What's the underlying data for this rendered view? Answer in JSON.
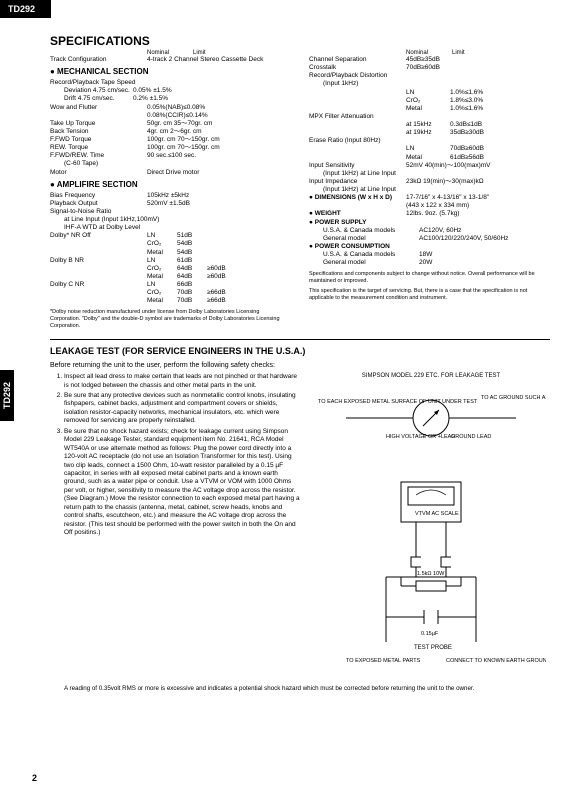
{
  "model": "TD292",
  "title": "SPECIFICATIONS",
  "hdr_nominal": "Nominal",
  "hdr_limit": "Limit",
  "trackcfg": {
    "lbl": "Track Configuration",
    "val": "4-track 2 Channel Stereo Cassette Deck"
  },
  "mech": {
    "title": "● MECHANICAL SECTION",
    "rpts": "Record/Playback Tape Speed",
    "dev": {
      "lbl": "Deviation 4.75 cm/sec.",
      "val": "0.05% ±1.5%"
    },
    "drift": {
      "lbl": "Drift 4.75 cm/sec.",
      "val": "0.2% ±1.5%"
    },
    "wow": {
      "lbl": "Wow and Flutter",
      "v1": "0.05%(NAB)≤0.08%",
      "v2": "0.08%(CCIR)≤0.14%"
    },
    "takeup": {
      "lbl": "Take Up Torque",
      "val": "50gr. cm  35～70gr. cm"
    },
    "back": {
      "lbl": "Back Tension",
      "val": "4gr. cm  2～6gr. cm"
    },
    "ffwd": {
      "lbl": "F.FWD Torque",
      "val": "100gr. cm  70～150gr. cm"
    },
    "rew": {
      "lbl": "REW. Torque",
      "val": "100gr. cm  70～150gr. cm"
    },
    "ffr": {
      "lbl": "F.FWD/REW. Time",
      "sub": "(C-60 Tape)",
      "val": "90 sec.≤100 sec."
    },
    "motor": {
      "lbl": "Motor",
      "val": "Direct Drive motor"
    }
  },
  "amp": {
    "title": "● AMPLIFIRE SECTION",
    "bias": {
      "lbl": "Bias Frequency",
      "val": "105kHz ±5kHz"
    },
    "pb": {
      "lbl": "Playback Output",
      "val": "520mV ±1.5dB"
    },
    "snr": {
      "lbl": "Signal-to-Noise Ratio",
      "s1": "at Line Input (Input 1kHz,100mV)",
      "s2": "IHF-A WTD at Dolby Level"
    },
    "d_off": {
      "lbl": "Dolby* NR Off",
      "r": [
        [
          "LN",
          "51dB",
          ""
        ],
        [
          "CrO₂",
          "54dB",
          ""
        ],
        [
          "Metal",
          "54dB",
          ""
        ]
      ]
    },
    "d_b": {
      "lbl": "Dolby B NR",
      "r": [
        [
          "LN",
          "61dB",
          ""
        ],
        [
          "CrO₂",
          "64dB",
          "≥60dB"
        ],
        [
          "Metal",
          "64dB",
          "≥60dB"
        ]
      ]
    },
    "d_c": {
      "lbl": "Dolby C NR",
      "r": [
        [
          "LN",
          "66dB",
          ""
        ],
        [
          "CrO₂",
          "70dB",
          "≥66dB"
        ],
        [
          "Metal",
          "70dB",
          "≥66dB"
        ]
      ]
    }
  },
  "fn1": "*Dolby noise reduction manufactured under license from Dolby Laboratories Licensing Corporation. \"Dolby\" and the double-D symbol are trademarks of Dolby Laboratories Licensing Corporation.",
  "r": {
    "cs": {
      "lbl": "Channel Separation",
      "val": "45dB≥35dB"
    },
    "ct": {
      "lbl": "Crosstalk",
      "val": "70dB≥60dB"
    },
    "rpd": {
      "lbl": "Record/Playback Distortion",
      "sub": "(Input 1kHz)"
    },
    "rpd_r": [
      [
        "LN",
        "1.0%≤1.6%"
      ],
      [
        "CrO₂",
        "1.8%≤3.0%"
      ],
      [
        "Metal",
        "1.0%≤1.6%"
      ]
    ],
    "mpx": {
      "lbl": "MPX Filter Attenuation",
      "r": [
        [
          "at 15kHz",
          "0.3dB≤1dB"
        ],
        [
          "at 19kHz",
          "35dB≥30dB"
        ]
      ]
    },
    "era": {
      "lbl": "Erase Ratio (Input 80Hz)",
      "r": [
        [
          "LN",
          "70dB≥60dB"
        ],
        [
          "Metal",
          "61dB≥56dB"
        ]
      ]
    },
    "is": {
      "lbl": "Input Sensitivity",
      "sub": "(Input 1kHz) at Line Input",
      "val": "52mV  40(min)～100(max)mV"
    },
    "ii": {
      "lbl": "Input Impedance",
      "sub": "(Input 1kHz) at Line Input",
      "val": "23kΩ  19(min)～30(max)kΩ"
    },
    "dim": {
      "lbl": "● DIMENSIONS (W x H x D)",
      "val": "17-7/16\" x 4-13/16\" x 13-1/8\"",
      "v2": "(443 x 122 x 334 mm)"
    },
    "wt": {
      "lbl": "● WEIGHT",
      "val": "12lbs. 9oz. (5.7kg)"
    },
    "ps": {
      "lbl": "● POWER SUPPLY",
      "r": [
        [
          "U.S.A. & Canada models",
          "AC120V, 60Hz"
        ],
        [
          "General model",
          "AC100/120/220/240V, 50/60Hz"
        ]
      ]
    },
    "pc": {
      "lbl": "● POWER CONSUMPTION",
      "r": [
        [
          "U.S.A. & Canada models",
          "18W"
        ],
        [
          "General model",
          "20W"
        ]
      ]
    }
  },
  "fn2": "Specifications and components subject to change without notice. Overall performance will be maintained or improved.",
  "fn3": "This specification is the target of servicing. But, there is a case that the specification is not applicable to the measurement condition and instrument.",
  "leak": {
    "title": "LEAKAGE TEST (FOR SERVICE ENGINEERS IN THE U.S.A.)",
    "intro": "Before returning the unit to the user, perform the following safety checks:",
    "s1": "Inspect all lead dress to make certain that leads are not pinched or that hardware is not lodged between the chassis and other metal parts in the unit.",
    "s2": "Be sure that any protective devices such as nonmetallic control knobs, insulating fishpapers, cabinet backs, adjustment and compartment covers or shields, isolation resistor-capacity networks, mechanical insulators, etc. which were removed for servicing are properly reinstalled.",
    "s3": "Be sure that no shock hazard exists; check for leakage current using Simpson Model 229 Leakage Tester, standard equipment item No. 21641, RCA Model WT540A or use alternate method as follows: Plug the power cord directly into a 120-volt AC receptacle (do not use an Isolation Transformer for this test). Using two clip leads, connect a 1500 Ohm, 10-watt resistor paralleled by a 0.15 µF capacitor, in series with all exposed metal cabinet parts and a known earth ground, such as a water pipe or conduit. Use a VTVM or VOM with 1000 Ohms per volt, or higher, sensitivity to measure the AC voltage drop across the resistor. (See Diagram.) Move the resistor connection to each exposed metal part having a return path to the chassis (antenna, metal, cabinet, screw heads, knobs and control shafts, escutcheon, etc.) and measure the AC voltage drop across the resistor. (This test should be performed with the power switch in both the On and Off positins.)",
    "foot": "A reading of 0.35volt RMS or more is excessive and indicates a potential shock hazard which must be corrected before returning the unit to the owner."
  },
  "diag": {
    "title1": "SIMPSON MODEL 229 ETC. FOR LEAKAGE TEST",
    "left": "TO EACH EXPOSED METAL SURFACE OF UNIT UNDER TEST",
    "right": "TO AC GROUND SUCH AS WATER OR BX CABLE, CONDUIT, ETC.",
    "hv": "HIGH VOLTAGE OR +LEAD",
    "gl": "GROUND LEAD",
    "vtvm": "VTVM AC SCALE",
    "res": "1.5kΩ 10W",
    "cap": "0.15µF",
    "probe": "TEST PROBE",
    "bleft": "TO EXPOSED METAL PARTS",
    "bright": "CONNECT TO KNOWN EARTH GROUND"
  },
  "page": "2"
}
